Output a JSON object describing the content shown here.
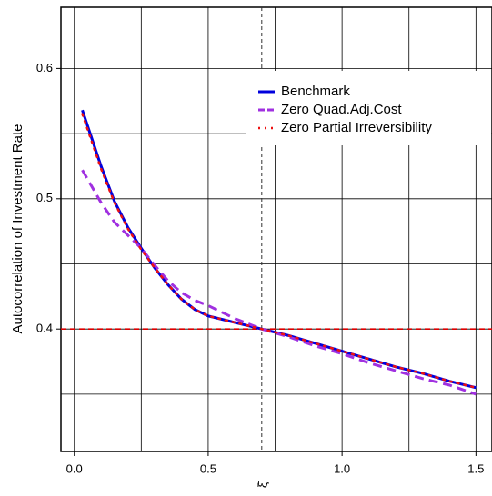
{
  "chart_data": {
    "type": "line",
    "ylabel": "Autocorrelation of Investment Rate",
    "xlabel": "ξ̄",
    "x": [
      0.03,
      0.1,
      0.15,
      0.2,
      0.25,
      0.3,
      0.35,
      0.4,
      0.45,
      0.5,
      0.6,
      0.7,
      0.8,
      0.9,
      1.0,
      1.1,
      1.2,
      1.3,
      1.4,
      1.5
    ],
    "series": [
      {
        "name": "Benchmark",
        "color": "#0000dd",
        "dash": "solid",
        "values": [
          0.568,
          0.525,
          0.498,
          0.478,
          0.462,
          0.447,
          0.434,
          0.423,
          0.415,
          0.41,
          0.405,
          0.4,
          0.395,
          0.389,
          0.383,
          0.377,
          0.371,
          0.366,
          0.36,
          0.355
        ]
      },
      {
        "name": "Zero Quad.Adj.Cost",
        "color": "#a030e0",
        "dash": "dashed",
        "values": [
          0.522,
          0.497,
          0.482,
          0.472,
          0.462,
          0.449,
          0.437,
          0.428,
          0.422,
          0.418,
          0.408,
          0.4,
          0.394,
          0.387,
          0.381,
          0.374,
          0.368,
          0.362,
          0.357,
          0.35
        ]
      },
      {
        "name": "Zero Partial Irreversibility",
        "color": "#ee1111",
        "dash": "dotted",
        "values": [
          0.565,
          0.523,
          0.497,
          0.477,
          0.461,
          0.447,
          0.434,
          0.423,
          0.415,
          0.41,
          0.405,
          0.4,
          0.395,
          0.389,
          0.383,
          0.377,
          0.371,
          0.366,
          0.36,
          0.355
        ]
      }
    ],
    "xlim": [
      -0.05,
      1.56
    ],
    "ylim": [
      0.306,
      0.647
    ],
    "xticks": [
      {
        "value": 0,
        "label": "0.0"
      },
      0.5,
      {
        "value": 1,
        "label": "1.0"
      },
      1.5
    ],
    "yticks": [
      0.4,
      0.5,
      0.6
    ],
    "x_minor_grid": [
      0.25,
      0.75,
      1.25
    ],
    "y_minor_grid": [
      0.35,
      0.45,
      0.55
    ],
    "grid": true,
    "legend": "top-right",
    "reference_lines": [
      {
        "axis": "y",
        "value": 0.4,
        "color": "#dd0000"
      },
      {
        "axis": "x",
        "value": 0.7,
        "color": "#333333"
      }
    ]
  }
}
